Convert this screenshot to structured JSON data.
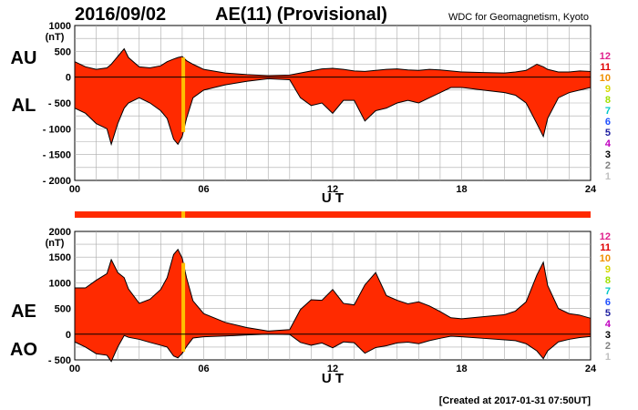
{
  "header": {
    "date": "2016/09/02",
    "title": "AE(11) (Provisional)",
    "source": "WDC for Geomagnetism, Kyoto"
  },
  "footer": {
    "created": "[Created at 2017-01-31 07:50UT]"
  },
  "colors": {
    "fill": "#ff2a00",
    "highlight": "#ffbf00",
    "grid": "#aaaaaa"
  },
  "chart_data": [
    {
      "type": "area",
      "name": "au-al",
      "ylabel": "(nT)",
      "xlabel": "U T",
      "side_labels": [
        "AU",
        "AL"
      ],
      "xlim": [
        0,
        24
      ],
      "ylim": [
        -2000,
        1000
      ],
      "x_ticks": [
        "00",
        "06",
        "12",
        "18",
        "24"
      ],
      "y_ticks": [
        "1000",
        "500",
        "0",
        "- 500",
        "- 1000",
        "- 1500",
        "- 2000"
      ],
      "y_tick_values": [
        1000,
        500,
        0,
        -500,
        -1000,
        -1500,
        -2000
      ],
      "highlight_hour": 5.05,
      "grid": true,
      "x": [
        0,
        0.5,
        1,
        1.5,
        1.7,
        2,
        2.3,
        2.5,
        3,
        3.5,
        4,
        4.3,
        4.6,
        4.8,
        5,
        5.2,
        5.5,
        6,
        7,
        8,
        9,
        10,
        10.5,
        11,
        11.5,
        12,
        12.5,
        13,
        13.5,
        14,
        14.5,
        15,
        15.5,
        16,
        16.5,
        17,
        17.5,
        18,
        19,
        20,
        20.5,
        21,
        21.5,
        21.8,
        22,
        22.5,
        23,
        23.5,
        24
      ],
      "series": [
        {
          "name": "AU",
          "values": [
            300,
            200,
            150,
            180,
            250,
            400,
            550,
            380,
            200,
            180,
            220,
            300,
            350,
            380,
            400,
            320,
            250,
            150,
            80,
            50,
            30,
            40,
            80,
            120,
            160,
            170,
            150,
            120,
            110,
            130,
            150,
            160,
            140,
            130,
            150,
            140,
            120,
            100,
            90,
            80,
            100,
            130,
            250,
            200,
            150,
            100,
            100,
            120,
            110
          ]
        },
        {
          "name": "AL",
          "values": [
            -600,
            -700,
            -900,
            -1000,
            -1300,
            -900,
            -600,
            -500,
            -400,
            -500,
            -650,
            -800,
            -1200,
            -1300,
            -1150,
            -800,
            -400,
            -250,
            -150,
            -80,
            -30,
            -50,
            -400,
            -550,
            -500,
            -700,
            -450,
            -450,
            -850,
            -650,
            -600,
            -500,
            -450,
            -500,
            -400,
            -300,
            -200,
            -200,
            -250,
            -300,
            -350,
            -500,
            -900,
            -1150,
            -800,
            -400,
            -300,
            -250,
            -200
          ]
        }
      ]
    },
    {
      "type": "area",
      "name": "ae-ao",
      "ylabel": "(nT)",
      "xlabel": "U T",
      "side_labels": [
        "AE",
        "AO"
      ],
      "xlim": [
        0,
        24
      ],
      "ylim": [
        -500,
        2000
      ],
      "x_ticks": [
        "00",
        "06",
        "12",
        "18",
        "24"
      ],
      "y_ticks": [
        "2000",
        "1500",
        "1000",
        "500",
        "0",
        "- 500"
      ],
      "y_tick_values": [
        2000,
        1500,
        1000,
        500,
        0,
        -500
      ],
      "highlight_hour": 5.05,
      "grid": true,
      "x": [
        0,
        0.5,
        1,
        1.5,
        1.7,
        2,
        2.3,
        2.5,
        3,
        3.5,
        4,
        4.3,
        4.6,
        4.8,
        5,
        5.2,
        5.5,
        6,
        7,
        8,
        9,
        10,
        10.5,
        11,
        11.5,
        12,
        12.5,
        13,
        13.5,
        14,
        14.5,
        15,
        15.5,
        16,
        16.5,
        17,
        17.5,
        18,
        19,
        20,
        20.5,
        21,
        21.5,
        21.8,
        22,
        22.5,
        23,
        23.5,
        24
      ],
      "series": [
        {
          "name": "AE",
          "values": [
            900,
            900,
            1050,
            1180,
            1450,
            1200,
            1100,
            880,
            600,
            680,
            870,
            1100,
            1550,
            1650,
            1480,
            1100,
            650,
            400,
            230,
            130,
            60,
            90,
            480,
            670,
            660,
            870,
            600,
            570,
            960,
            1200,
            750,
            660,
            590,
            630,
            550,
            440,
            320,
            300,
            340,
            380,
            450,
            630,
            1150,
            1400,
            950,
            500,
            400,
            370,
            310
          ]
        },
        {
          "name": "AO",
          "values": [
            -150,
            -250,
            -380,
            -410,
            -530,
            -250,
            -25,
            -60,
            -100,
            -160,
            -215,
            -250,
            -425,
            -460,
            -375,
            -240,
            -75,
            -50,
            -35,
            -15,
            0,
            -5,
            -160,
            -215,
            -170,
            -265,
            -150,
            -165,
            -370,
            -260,
            -225,
            -170,
            -155,
            -185,
            -125,
            -80,
            -40,
            -50,
            -80,
            -110,
            -125,
            -185,
            -325,
            -475,
            -325,
            -150,
            -100,
            -65,
            -45
          ]
        }
      ]
    }
  ],
  "hour_legend": [
    "12",
    "11",
    "10",
    "9",
    "8",
    "7",
    "6",
    "5",
    "4",
    "3",
    "2",
    "1"
  ],
  "hour_legend_colors": [
    "#e0208c",
    "#e00000",
    "#f09000",
    "#d8d800",
    "#a0e000",
    "#00c8c8",
    "#2050ff",
    "#2020a0",
    "#c000c0",
    "#000000",
    "#808080",
    "#c0c0c0"
  ]
}
